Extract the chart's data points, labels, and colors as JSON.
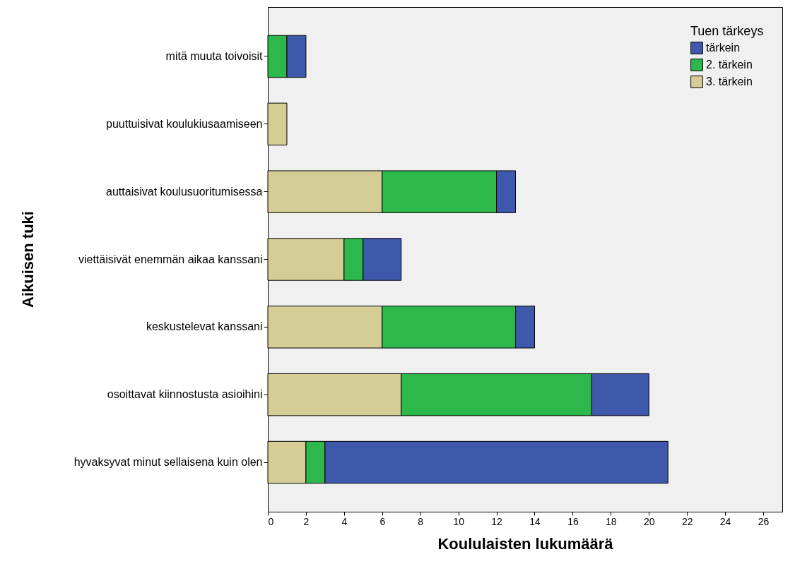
{
  "chart_data": {
    "type": "bar",
    "orientation": "horizontal",
    "stacked": true,
    "xlabel": "Koululaisten lukumäärä",
    "ylabel": "Aikuisen tuki",
    "legend_title": "Tuen tärkeys",
    "legend": "top right",
    "grid": false,
    "categories": [
      "mitä muuta toivoisit",
      "puuttuisivat koulukiusaamiseen",
      "auttaisivat koulusuoritumisessa",
      "viettäisivät enemmän aikaa kanssani",
      "keskustelevat kanssani",
      "osoittavat kiinnostusta asioihini",
      "hyvaksyvat minut sellaisena kuin olen"
    ],
    "xlim": [
      0,
      27
    ],
    "xticks": [
      0,
      2,
      4,
      6,
      8,
      10,
      12,
      14,
      16,
      18,
      20,
      22,
      24,
      26
    ],
    "series": [
      {
        "name": "3. tärkein",
        "color": "#d4cd96",
        "values": [
          0,
          1,
          6,
          4,
          6,
          7,
          2
        ]
      },
      {
        "name": "2. tärkein",
        "color": "#2db84b",
        "values": [
          1,
          0,
          6,
          1,
          7,
          10,
          1
        ]
      },
      {
        "name": "tärkein",
        "color": "#3e58ac",
        "values": [
          1,
          0,
          1,
          2,
          1,
          3,
          18
        ]
      }
    ]
  }
}
